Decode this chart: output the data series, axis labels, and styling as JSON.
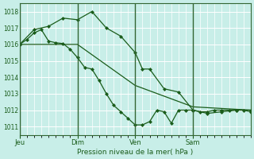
{
  "bg_color": "#c8eee8",
  "plot_bg_color": "#c8eee8",
  "grid_color": "#ffffff",
  "line_color": "#1a5c1a",
  "marker_color": "#1a5c1a",
  "xlabel": "Pression niveau de la mer( hPa )",
  "ylim": [
    1010.5,
    1018.5
  ],
  "yticks": [
    1011,
    1012,
    1013,
    1014,
    1015,
    1016,
    1017,
    1018
  ],
  "day_labels": [
    "Jeu",
    "Dim",
    "Ven",
    "Sam"
  ],
  "day_positions": [
    0,
    48,
    96,
    144
  ],
  "xlim": [
    0,
    192
  ],
  "series1_x": [
    0,
    6,
    12,
    18,
    24,
    30,
    36,
    42,
    48,
    54,
    60,
    66,
    72,
    78,
    84,
    90,
    96,
    102,
    108,
    114,
    120,
    126,
    132,
    138,
    144,
    150,
    156,
    162,
    168,
    174,
    180,
    186,
    192
  ],
  "series1_y": [
    1016.0,
    1016.3,
    1016.7,
    1016.9,
    1016.2,
    1016.1,
    1016.05,
    1015.7,
    1015.2,
    1014.6,
    1014.5,
    1013.8,
    1013.0,
    1012.3,
    1011.9,
    1011.5,
    1011.1,
    1011.1,
    1011.3,
    1012.0,
    1011.9,
    1011.2,
    1012.0,
    1012.0,
    1012.0,
    1011.9,
    1011.9,
    1012.0,
    1012.0,
    1012.0,
    1012.0,
    1012.0,
    1011.9
  ],
  "series2_x": [
    0,
    12,
    24,
    36,
    48,
    60,
    72,
    84,
    96,
    102,
    108,
    120,
    132,
    144,
    156,
    168,
    180,
    192
  ],
  "series2_y": [
    1016.0,
    1016.9,
    1017.1,
    1017.6,
    1017.5,
    1018.0,
    1017.0,
    1016.5,
    1015.5,
    1014.5,
    1014.5,
    1013.3,
    1013.1,
    1012.0,
    1011.8,
    1011.9,
    1012.0,
    1012.0
  ],
  "series3_x": [
    0,
    48,
    96,
    144,
    192
  ],
  "series3_y": [
    1016.0,
    1016.0,
    1013.5,
    1012.2,
    1012.0
  ],
  "xtick_sep_color": "#336633",
  "spine_color": "#336633"
}
